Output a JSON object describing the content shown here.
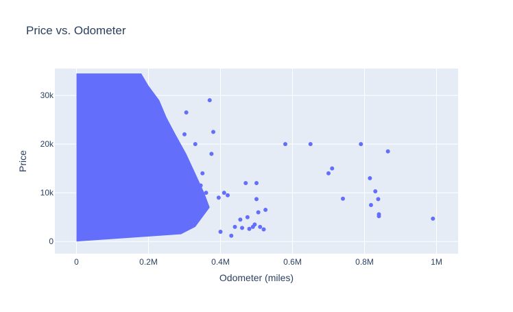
{
  "chart_data": {
    "type": "scatter",
    "title": "Price vs. Odometer",
    "xlabel": "Odometer (miles)",
    "ylabel": "Price",
    "xlim": [
      -60000,
      1060000
    ],
    "ylim": [
      -2500,
      35500
    ],
    "x_ticks": [
      {
        "value": 0,
        "label": "0"
      },
      {
        "value": 200000,
        "label": "0.2M"
      },
      {
        "value": 400000,
        "label": "0.4M"
      },
      {
        "value": 600000,
        "label": "0.6M"
      },
      {
        "value": 800000,
        "label": "0.8M"
      },
      {
        "value": 1000000,
        "label": "1M"
      }
    ],
    "y_ticks": [
      {
        "value": 0,
        "label": "0"
      },
      {
        "value": 10000,
        "label": "10k"
      },
      {
        "value": 20000,
        "label": "20k"
      },
      {
        "value": 30000,
        "label": "30k"
      }
    ],
    "grid": true,
    "colors": {
      "marker": "#636efa",
      "plot_bg": "#e5ecf6",
      "grid": "#ffffff",
      "text": "#2a3f5f"
    },
    "series": [
      {
        "x": [
          580000,
          650000,
          790000,
          865000,
          700000,
          710000,
          815000,
          830000,
          838000,
          740000,
          818000,
          840000,
          840000,
          990000,
          500000,
          500000,
          470000,
          525000,
          505000,
          420000,
          475000,
          490000,
          440000,
          460000,
          480000,
          510000,
          455000,
          430000,
          395000,
          520000,
          495000,
          410000,
          370000,
          380000,
          305000,
          375000,
          330000,
          350000,
          300000,
          360000,
          345000,
          400000
        ],
        "y": [
          20000,
          20000,
          20000,
          18500,
          14000,
          15000,
          13000,
          10300,
          8700,
          8800,
          7500,
          5600,
          5200,
          4700,
          12000,
          8700,
          12000,
          6500,
          6000,
          9500,
          5000,
          3000,
          3000,
          2800,
          2600,
          3000,
          4500,
          1200,
          9000,
          2500,
          3500,
          10000,
          29000,
          22500,
          26500,
          18000,
          20000,
          14000,
          22000,
          10000,
          11500,
          2000
        ]
      }
    ]
  }
}
